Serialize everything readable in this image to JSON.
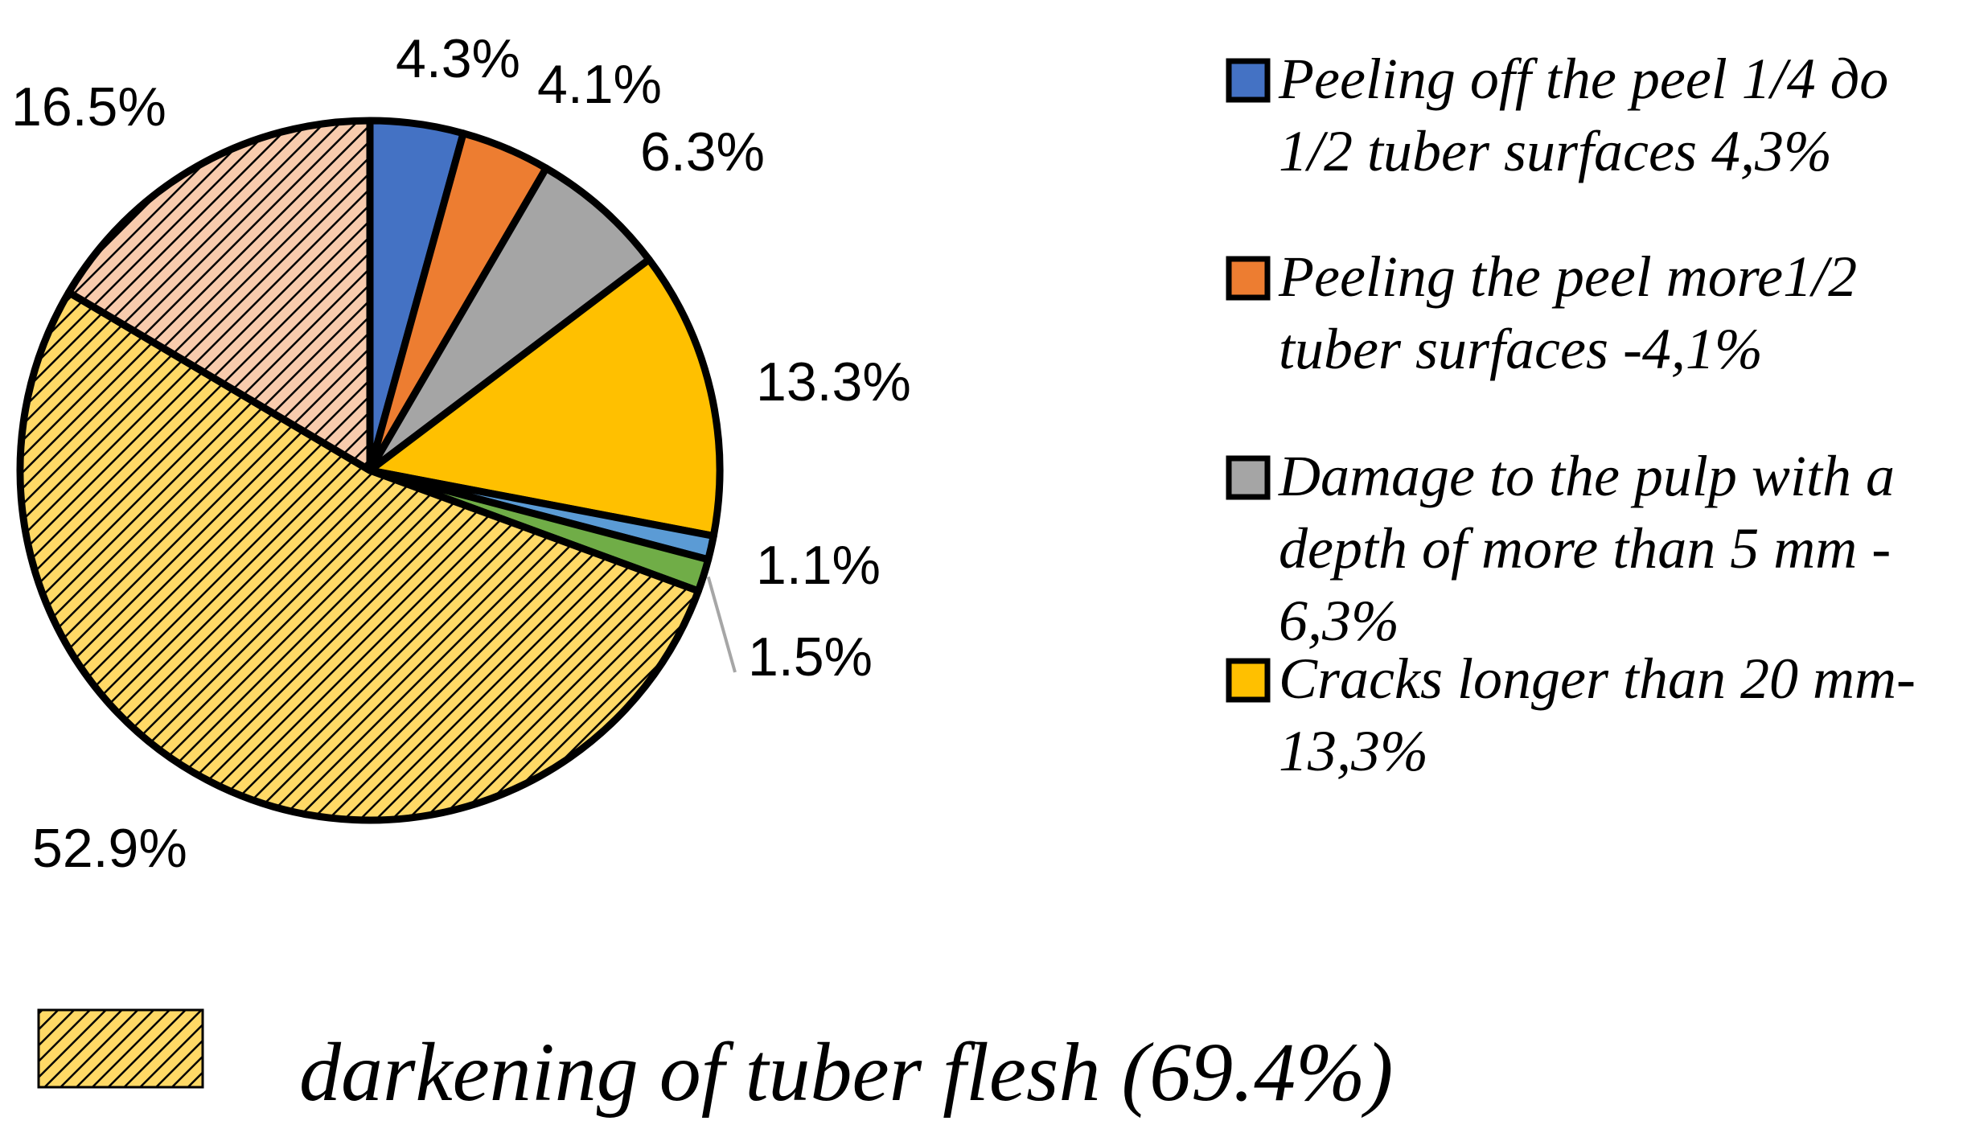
{
  "chart_data": {
    "type": "pie",
    "title": "",
    "slices": [
      {
        "value": 4.3,
        "label": "4.3%",
        "color": "#4472C4",
        "pattern": "solid"
      },
      {
        "value": 4.1,
        "label": "4.1%",
        "color": "#ED7D31",
        "pattern": "solid"
      },
      {
        "value": 6.3,
        "label": "6.3%",
        "color": "#A5A5A5",
        "pattern": "solid"
      },
      {
        "value": 13.3,
        "label": "13.3%",
        "color": "#FFC000",
        "pattern": "solid"
      },
      {
        "value": 1.1,
        "label": "1.1%",
        "color": "#5B9BD5",
        "pattern": "solid"
      },
      {
        "value": 1.5,
        "label": "1.5%",
        "color": "#70AD47",
        "pattern": "solid"
      },
      {
        "value": 52.9,
        "label": "52.9%",
        "color": "#FFD966",
        "pattern": "hatch"
      },
      {
        "value": 16.5,
        "label": "16.5%",
        "color": "#F8CBAD",
        "pattern": "hatch"
      }
    ],
    "legend": [
      {
        "lines": [
          "Peeling off the peel 1/4 до",
          "1/2 tuber surfaces 4,3%"
        ],
        "color": "#4472C4"
      },
      {
        "lines": [
          "Peeling the peel more1/2",
          "tuber surfaces -4,1%"
        ],
        "color": "#ED7D31"
      },
      {
        "lines": [
          "Damage to the pulp with a",
          "depth of more than 5 mm -",
          "6,3%"
        ],
        "color": "#A5A5A5"
      },
      {
        "lines": [
          "Cracks longer than 20 mm-",
          "13,3%"
        ],
        "color": "#FFC000"
      }
    ],
    "legend_position": "right",
    "bottom_legend": {
      "text": "darkening of tuber flesh (69.4%)",
      "color": "#FFD966",
      "pattern": "hatch"
    }
  }
}
